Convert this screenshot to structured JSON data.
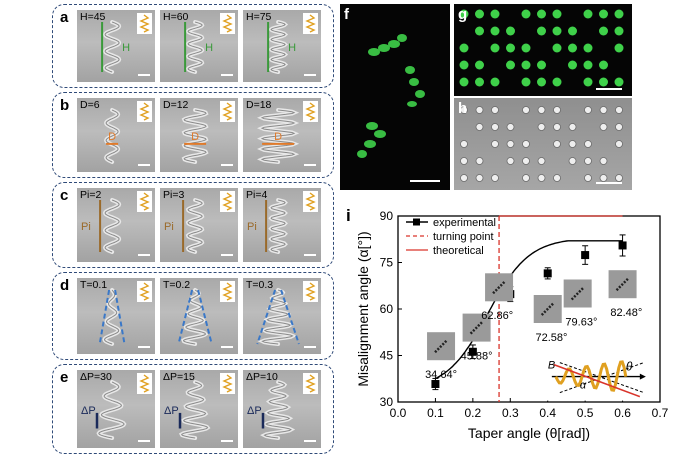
{
  "figure": {
    "panel_labels": [
      "a",
      "b",
      "c",
      "d",
      "e",
      "f",
      "g",
      "h",
      "i"
    ]
  },
  "panels": {
    "a": {
      "items": [
        "H=45",
        "H=60",
        "H=75"
      ],
      "annotation": "H"
    },
    "b": {
      "items": [
        "D=6",
        "D=12",
        "D=18"
      ],
      "annotation": "D"
    },
    "c": {
      "items": [
        "Pi=2",
        "Pi=3",
        "Pi=4"
      ],
      "annotation": "Pi"
    },
    "d": {
      "items": [
        "T=0.1",
        "T=0.2",
        "T=0.3"
      ]
    },
    "e": {
      "items": [
        "ΔP=30",
        "ΔP=15",
        "ΔP=10"
      ],
      "annotation": "ΔP"
    }
  },
  "colors": {
    "dashed_border": "#2f4a78",
    "annotation_green": "#3a9a3a",
    "annotation_orange": "#e07a2a",
    "annotation_brown": "#9a6a2a",
    "annotation_blue": "#3a78c8",
    "fluor_green": "#3fd14a",
    "line_red": "#d9342b",
    "helix_icon": "#e0a020"
  },
  "chart_data": {
    "type": "line",
    "xlabel": "Taper angle (θ[rad])",
    "ylabel": "Misalignment angle (α[°])",
    "xlim": [
      0.0,
      0.7
    ],
    "ylim": [
      30,
      90
    ],
    "xticks": [
      "0.0",
      "0.1",
      "0.2",
      "0.3",
      "0.4",
      "0.5",
      "0.6",
      "0.7"
    ],
    "yticks": [
      "30",
      "45",
      "60",
      "75",
      "90"
    ],
    "legend": {
      "placement": "top-left",
      "entries": [
        "experimental",
        "turning point",
        "theoretical"
      ]
    },
    "series": [
      {
        "name": "experimental",
        "x": [
          0.1,
          0.2,
          0.3,
          0.4,
          0.5,
          0.6
        ],
        "y": [
          35.8,
          46.2,
          64.8,
          71.5,
          77.4,
          80.5
        ],
        "err": [
          1.8,
          2.2,
          2.4,
          1.8,
          3.0,
          3.4
        ]
      },
      {
        "name": "theoretical",
        "value": 90
      },
      {
        "name": "turning point",
        "x": 0.27
      }
    ],
    "annotations": [
      "34.64°",
      "45.88°",
      "62.86°",
      "72.58°",
      "79.63°",
      "82.48°"
    ],
    "diagram_labels": {
      "B": "B",
      "alpha": "α",
      "theta": "θ"
    }
  }
}
